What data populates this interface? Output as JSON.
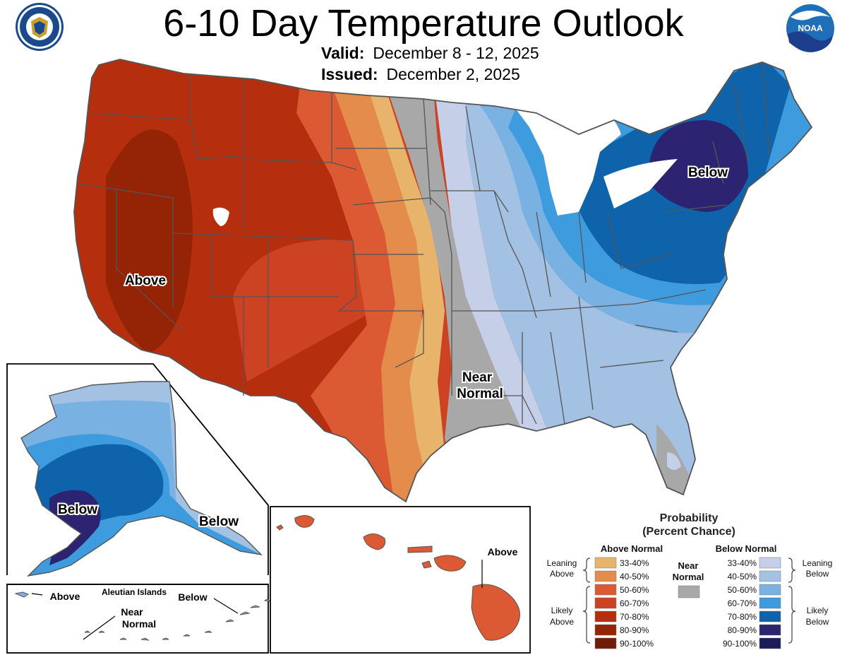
{
  "title": "6-10 Day Temperature Outlook",
  "valid_label": "Valid:",
  "valid_value": "December 8 - 12, 2025",
  "issued_label": "Issued:",
  "issued_value": "December 2, 2025",
  "logos": {
    "left": "department-of-commerce-seal",
    "left_text": "DEPARTMENT OF COMMERCE · UNITED STATES OF AMERICA",
    "right": "noaa-logo",
    "right_text": "NOAA"
  },
  "map_labels": {
    "above_west": "Above",
    "below_northeast": "Below",
    "near_normal_1": "Near",
    "near_normal_2": "Normal",
    "alaska_below_1": "Below",
    "alaska_below_2": "Below",
    "hawaii_above": "Above",
    "aleutian_title": "Aleutian Islands",
    "aleutian_above": "Above",
    "aleutian_near_1": "Near",
    "aleutian_near_2": "Normal",
    "aleutian_below": "Below"
  },
  "legend": {
    "title_1": "Probability",
    "title_2": "(Percent Chance)",
    "above_header": "Above Normal",
    "below_header": "Below Normal",
    "near_header_1": "Near",
    "near_header_2": "Normal",
    "leaning_above_1": "Leaning",
    "leaning_above_2": "Above",
    "likely_above_1": "Likely",
    "likely_above_2": "Above",
    "leaning_below_1": "Leaning",
    "leaning_below_2": "Below",
    "likely_below_1": "Likely",
    "likely_below_2": "Below",
    "above_items": [
      {
        "label": "33-40%",
        "color": "#e8b46c"
      },
      {
        "label": "40-50%",
        "color": "#e48c4c"
      },
      {
        "label": "50-60%",
        "color": "#dc5a33"
      },
      {
        "label": "60-70%",
        "color": "#cc4223"
      },
      {
        "label": "70-80%",
        "color": "#b52f0f"
      },
      {
        "label": "80-90%",
        "color": "#952406"
      },
      {
        "label": "90-100%",
        "color": "#6f1d08"
      }
    ],
    "below_items": [
      {
        "label": "33-40%",
        "color": "#c5cfe8"
      },
      {
        "label": "40-50%",
        "color": "#a3c2e3"
      },
      {
        "label": "50-60%",
        "color": "#79b1e3"
      },
      {
        "label": "60-70%",
        "color": "#3e9bde"
      },
      {
        "label": "70-80%",
        "color": "#0f63ab"
      },
      {
        "label": "80-90%",
        "color": "#2c2470"
      },
      {
        "label": "90-100%",
        "color": "#1c1c58"
      }
    ],
    "near_color": "#a8a8a8"
  }
}
